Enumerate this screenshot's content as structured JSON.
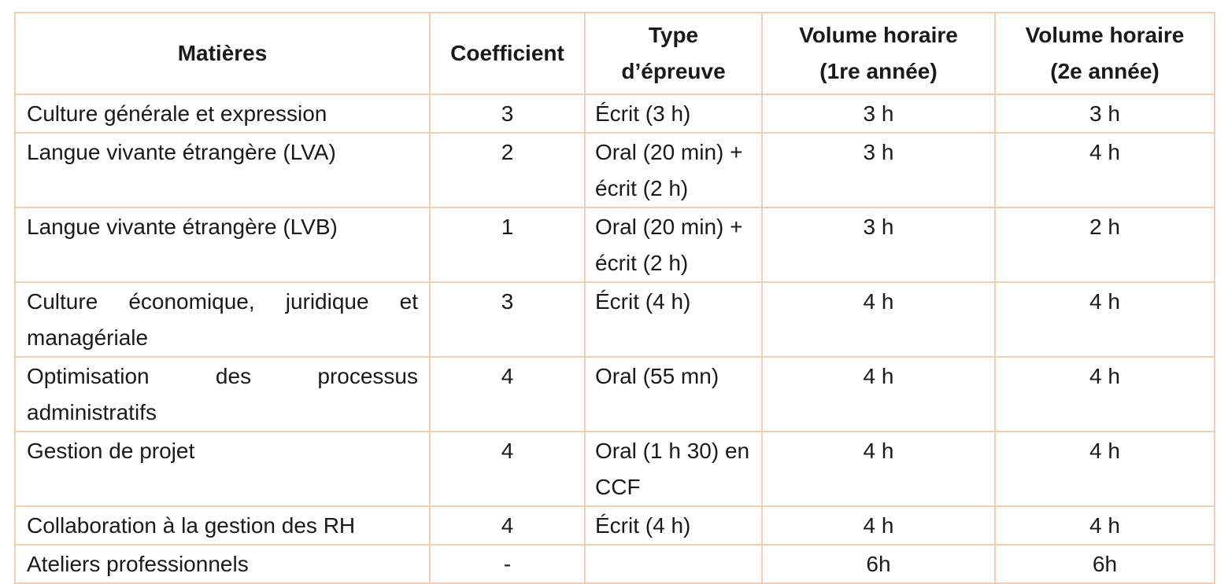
{
  "table": {
    "colors": {
      "border": "#f3ceb2",
      "text": "#1a1a1a",
      "background": "#ffffff"
    },
    "columns": [
      {
        "id": "matiere",
        "label": "Matières"
      },
      {
        "id": "coefficient",
        "label": "Coefficient"
      },
      {
        "id": "type-epreuve",
        "label": "Type\nd’épreuve"
      },
      {
        "id": "volume-1",
        "label": "Volume horaire\n(1re année)"
      },
      {
        "id": "volume-2",
        "label": "Volume horaire\n(2e année)"
      }
    ],
    "rows": [
      [
        "Culture générale et expression",
        "3",
        "Écrit (3 h)",
        "3 h",
        "3 h"
      ],
      [
        "Langue vivante étrangère (LVA)",
        "2",
        "Oral (20 min) + écrit (2 h)",
        "3 h",
        "4 h"
      ],
      [
        "Langue vivante étrangère (LVB)",
        "1",
        "Oral (20 min) + écrit (2 h)",
        "3 h",
        "2 h"
      ],
      [
        "Culture économique, juridique et managériale",
        "3",
        "Écrit (4 h)",
        "4 h",
        "4 h"
      ],
      [
        "Optimisation des processus administratifs",
        "4",
        "Oral (55 mn)",
        "4 h",
        "4 h"
      ],
      [
        "Gestion de projet",
        "4",
        "Oral (1 h 30) en CCF",
        "4 h",
        "4 h"
      ],
      [
        "Collaboration à la gestion des RH",
        "4",
        "Écrit (4 h)",
        "4 h",
        "4 h"
      ],
      [
        "Ateliers professionnels",
        "-",
        "",
        "6h",
        "6h"
      ]
    ]
  }
}
